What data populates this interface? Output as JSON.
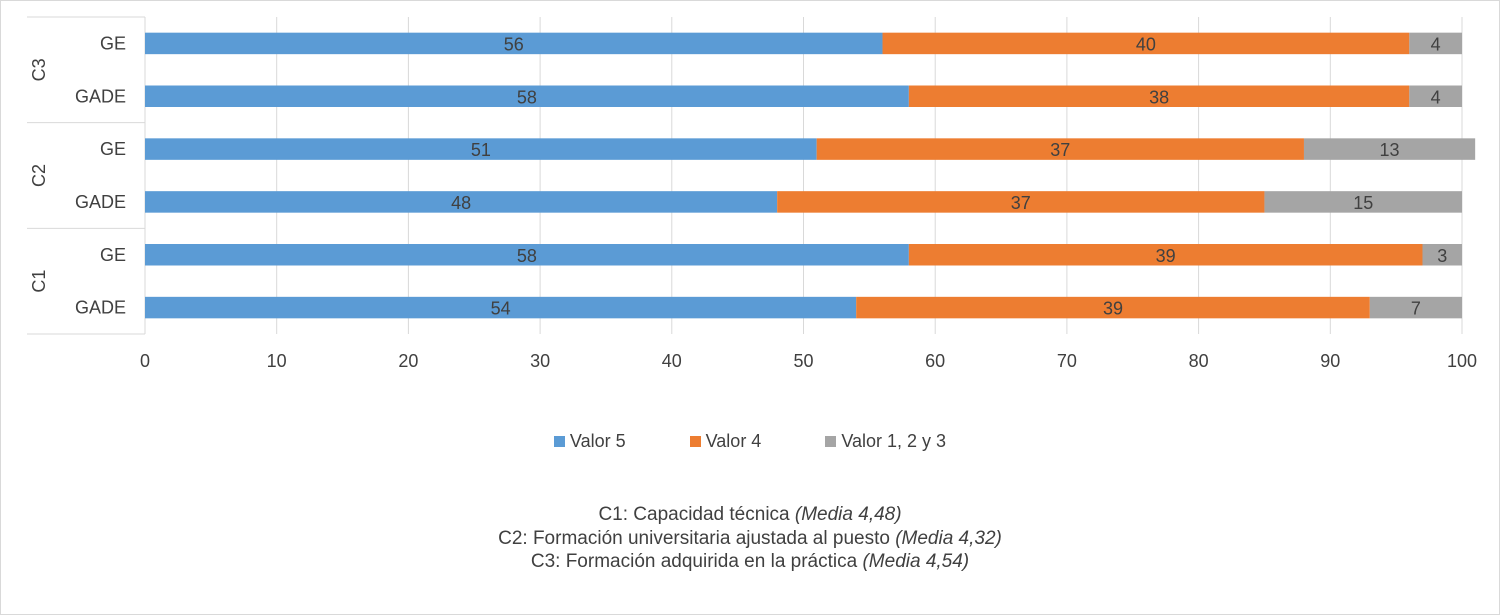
{
  "colors": {
    "valor5": "#5b9bd5",
    "valor4": "#ed7d31",
    "valor123": "#a5a5a5"
  },
  "chart_data": {
    "type": "bar",
    "orientation": "horizontal",
    "stacked": true,
    "groups": [
      {
        "name": "C3",
        "categories": [
          "GE",
          "GADE"
        ]
      },
      {
        "name": "C2",
        "categories": [
          "GE",
          "GADE"
        ]
      },
      {
        "name": "C1",
        "categories": [
          "GE",
          "GADE"
        ]
      }
    ],
    "series": [
      {
        "name": "Valor 5",
        "values": [
          56,
          58,
          51,
          48,
          58,
          54
        ]
      },
      {
        "name": "Valor 4",
        "values": [
          40,
          38,
          37,
          37,
          39,
          39
        ]
      },
      {
        "name": "Valor 1, 2 y 3",
        "values": [
          4,
          4,
          13,
          15,
          3,
          7
        ]
      }
    ],
    "xlim": [
      0,
      100
    ],
    "xticks": [
      "0",
      "10",
      "20",
      "30",
      "40",
      "50",
      "60",
      "70",
      "80",
      "90",
      "100"
    ],
    "grid": true,
    "legend_position": "bottom"
  },
  "notes": [
    {
      "text": "C1: Capacidad técnica ",
      "emphasis": "(Media 4,48)"
    },
    {
      "text": "C2: Formación universitaria ajustada al puesto ",
      "emphasis": "(Media 4,32)"
    },
    {
      "text": "C3: Formación adquirida en la práctica ",
      "emphasis": "(Media 4,54)"
    }
  ]
}
